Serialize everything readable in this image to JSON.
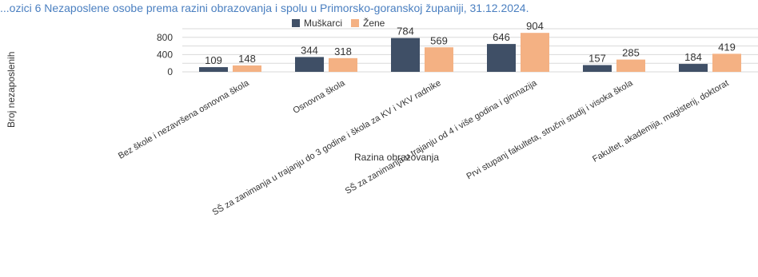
{
  "chart_data": {
    "type": "bar",
    "title": "...ozici 6 Nezaposlene osobe prema razini obrazovanja i spolu u Primorsko-goranskoj županiji, 31.12.2024.",
    "xlabel": "Razina obrazovanja",
    "ylabel": "Broj nezaposlenih",
    "ylim": [
      0,
      1000
    ],
    "yticks": [
      0,
      400,
      800
    ],
    "grid": true,
    "legend_position": "top-center",
    "categories": [
      "Bez škole i nezavršena osnovna škola",
      "Osnovna škola",
      "SŠ za zanimanja u trajanju do 3 godine i škola za KV i VKV radnike",
      "SŠ za zanimanja u trajanju od 4 i više godina i gimnazija",
      "Prvi stupanj fakulteta, stručni studij i visoka škola",
      "Fakultet, akademija, magisterij, doktorat"
    ],
    "series": [
      {
        "name": "Muškarci",
        "color": "#3f4f66",
        "values": [
          109,
          344,
          784,
          646,
          157,
          184
        ]
      },
      {
        "name": "Žene",
        "color": "#f4b183",
        "values": [
          148,
          318,
          569,
          904,
          285,
          419
        ]
      }
    ]
  }
}
